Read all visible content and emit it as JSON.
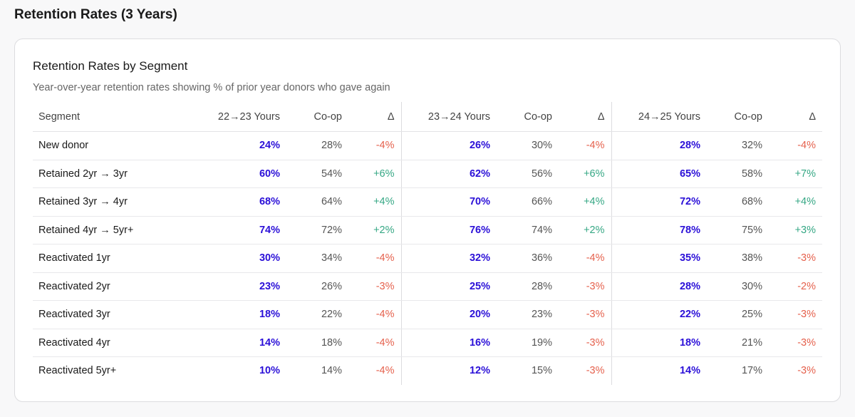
{
  "header": {
    "title": "Retention Rates (3 Years)"
  },
  "card": {
    "title": "Retention Rates by Segment",
    "subtitle": "Year-over-year retention rates showing % of prior year donors who gave again"
  },
  "table": {
    "columns": [
      "Segment",
      "22→23 Yours",
      "Co-op",
      "Δ",
      "23→24 Yours",
      "Co-op",
      "Δ",
      "24→25 Yours",
      "Co-op",
      "Δ"
    ],
    "rows": [
      [
        "New donor",
        "24%",
        "28%",
        "-4%",
        "26%",
        "30%",
        "-4%",
        "28%",
        "32%",
        "-4%"
      ],
      [
        "Retained 2yr → 3yr",
        "60%",
        "54%",
        "+6%",
        "62%",
        "56%",
        "+6%",
        "65%",
        "58%",
        "+7%"
      ],
      [
        "Retained 3yr → 4yr",
        "68%",
        "64%",
        "+4%",
        "70%",
        "66%",
        "+4%",
        "72%",
        "68%",
        "+4%"
      ],
      [
        "Retained 4yr → 5yr+",
        "74%",
        "72%",
        "+2%",
        "76%",
        "74%",
        "+2%",
        "78%",
        "75%",
        "+3%"
      ],
      [
        "Reactivated 1yr",
        "30%",
        "34%",
        "-4%",
        "32%",
        "36%",
        "-4%",
        "35%",
        "38%",
        "-3%"
      ],
      [
        "Reactivated 2yr",
        "23%",
        "26%",
        "-3%",
        "25%",
        "28%",
        "-3%",
        "28%",
        "30%",
        "-2%"
      ],
      [
        "Reactivated 3yr",
        "18%",
        "22%",
        "-4%",
        "20%",
        "23%",
        "-3%",
        "22%",
        "25%",
        "-3%"
      ],
      [
        "Reactivated 4yr",
        "14%",
        "18%",
        "-4%",
        "16%",
        "19%",
        "-3%",
        "18%",
        "21%",
        "-3%"
      ],
      [
        "Reactivated 5yr+",
        "10%",
        "14%",
        "-4%",
        "12%",
        "15%",
        "-3%",
        "14%",
        "17%",
        "-3%"
      ]
    ]
  }
}
